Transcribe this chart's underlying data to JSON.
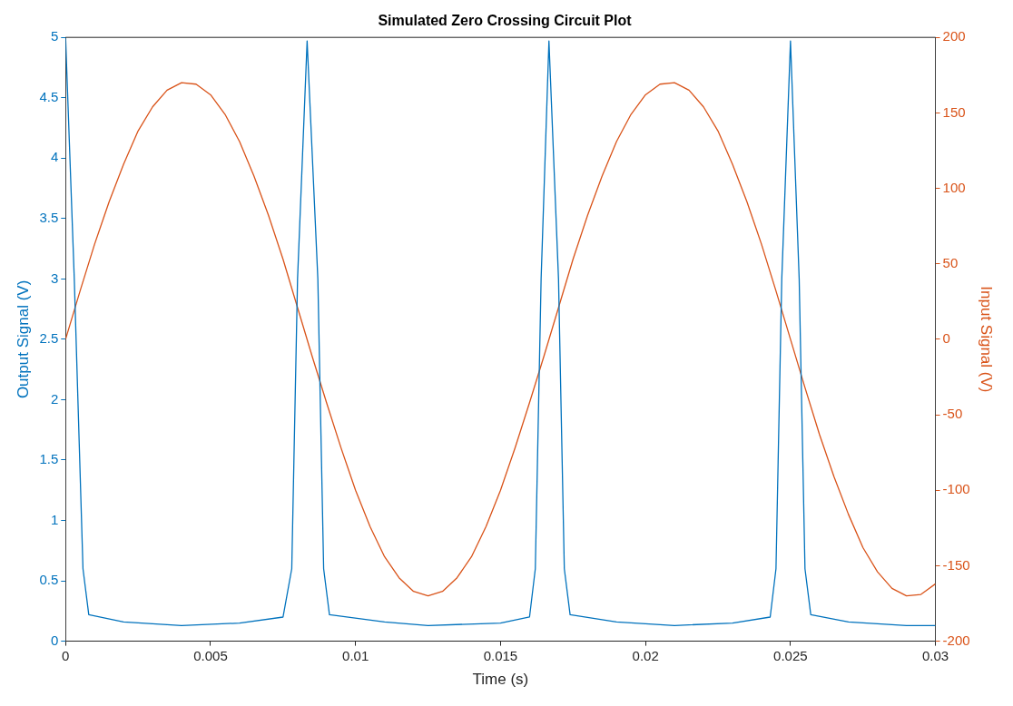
{
  "chart_data": {
    "type": "line",
    "title": "Simulated Zero Crossing Circuit Plot",
    "xlabel": "Time (s)",
    "ylabel": "Output Signal (V)",
    "y2label": "Input Signal (V)",
    "xlim": [
      0,
      0.03
    ],
    "xticks": [
      0,
      0.005,
      0.01,
      0.015,
      0.02,
      0.025,
      0.03
    ],
    "ylim": [
      0,
      5
    ],
    "yticks": [
      0,
      0.5,
      1,
      1.5,
      2,
      2.5,
      3,
      3.5,
      4,
      4.5,
      5
    ],
    "y2lim": [
      -200,
      200
    ],
    "y2ticks": [
      -200,
      -150,
      -100,
      -50,
      0,
      50,
      100,
      150,
      200
    ],
    "grid": false,
    "legend": false,
    "marker": "none",
    "series": [
      {
        "type": "line",
        "color": "#0072bd",
        "x": [
          0,
          0.0003,
          0.0006,
          0.0008,
          0.002,
          0.004,
          0.006,
          0.0075,
          0.0078,
          0.008,
          0.00833,
          0.0087,
          0.0089,
          0.0091,
          0.011,
          0.0125,
          0.015,
          0.016,
          0.0162,
          0.0164,
          0.01667,
          0.017,
          0.0172,
          0.0174,
          0.019,
          0.021,
          0.023,
          0.0243,
          0.0245,
          0.0247,
          0.025,
          0.0253,
          0.0255,
          0.0257,
          0.027,
          0.029,
          0.03
        ],
        "values": [
          5,
          3,
          0.6,
          0.22,
          0.16,
          0.13,
          0.15,
          0.2,
          0.6,
          3,
          4.97,
          3,
          0.6,
          0.22,
          0.16,
          0.13,
          0.15,
          0.2,
          0.6,
          3,
          4.97,
          3,
          0.6,
          0.22,
          0.16,
          0.13,
          0.15,
          0.2,
          0.6,
          3,
          4.97,
          3,
          0.6,
          0.22,
          0.16,
          0.13,
          0.13
        ]
      },
      {
        "type": "line",
        "color": "#d95319",
        "axis": "y2",
        "x": [
          0,
          0.0005,
          0.001,
          0.0015,
          0.002,
          0.0025,
          0.003,
          0.0035,
          0.004,
          0.0045,
          0.005,
          0.0055,
          0.006,
          0.0065,
          0.007,
          0.0075,
          0.008,
          0.0085,
          0.009,
          0.0095,
          0.01,
          0.0105,
          0.011,
          0.0115,
          0.012,
          0.0125,
          0.013,
          0.0135,
          0.014,
          0.0145,
          0.015,
          0.0155,
          0.016,
          0.0165,
          0.017,
          0.0175,
          0.018,
          0.0185,
          0.019,
          0.0195,
          0.02,
          0.0205,
          0.021,
          0.0215,
          0.022,
          0.0225,
          0.023,
          0.0235,
          0.024,
          0.0245,
          0.025,
          0.0255,
          0.026,
          0.0265,
          0.027,
          0.0275,
          0.028,
          0.0285,
          0.029,
          0.0295,
          0.03
        ],
        "values": [
          0,
          32,
          63,
          91,
          116,
          138,
          154,
          165,
          170,
          169,
          162,
          149,
          131,
          108,
          82,
          53,
          21,
          -11,
          -42,
          -72,
          -100,
          -124,
          -144,
          -158,
          -167,
          -170,
          -167,
          -158,
          -144,
          -124,
          -100,
          -72,
          -42,
          -11,
          21,
          53,
          82,
          108,
          131,
          149,
          162,
          169,
          170,
          165,
          154,
          138,
          116,
          91,
          63,
          32,
          0,
          -32,
          -63,
          -91,
          -116,
          -138,
          -154,
          -165,
          -170,
          -169,
          -162
        ]
      }
    ]
  }
}
